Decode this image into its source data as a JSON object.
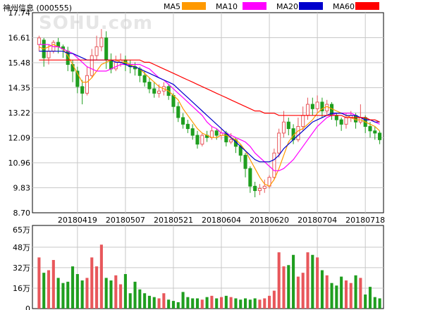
{
  "header": {
    "stock_title": "神州信息 (000555)"
  },
  "watermark": "SOHU.com",
  "legend": [
    {
      "label": "MA5",
      "color": "#FF9900"
    },
    {
      "label": "MA10",
      "color": "#FF00FF"
    },
    {
      "label": "MA20",
      "color": "#0000CC"
    },
    {
      "label": "MA60",
      "color": "#FF0000"
    }
  ],
  "colors": {
    "up": "#E8575B",
    "down": "#1F9E1F",
    "frame": "#000000",
    "grid": "#C8C8C8"
  },
  "chart_data": [
    {
      "type": "candlestick",
      "name": "price",
      "ylim": [
        8.7,
        17.74
      ],
      "y_ticks": [
        "17.74",
        "16.61",
        "15.48",
        "14.35",
        "13.22",
        "12.09",
        "10.96",
        "9.83",
        "8.70"
      ],
      "x_ticks": [
        {
          "index": 8,
          "label": "20180419"
        },
        {
          "index": 18,
          "label": "20180507"
        },
        {
          "index": 28,
          "label": "20180521"
        },
        {
          "index": 38,
          "label": "20180604"
        },
        {
          "index": 48,
          "label": "20180620"
        },
        {
          "index": 58,
          "label": "20180704"
        },
        {
          "index": 68,
          "label": "20180718"
        }
      ],
      "candles": [
        [
          16.3,
          16.6,
          16.7,
          16.0
        ],
        [
          16.5,
          15.7,
          16.6,
          15.3
        ],
        [
          15.7,
          16.0,
          16.3,
          15.4
        ],
        [
          16.0,
          16.4,
          16.5,
          15.9
        ],
        [
          16.4,
          16.2,
          16.6,
          15.9
        ],
        [
          16.2,
          16.1,
          16.3,
          15.7
        ],
        [
          16.0,
          15.4,
          16.2,
          15.1
        ],
        [
          15.4,
          15.1,
          15.6,
          14.6
        ],
        [
          15.1,
          14.4,
          15.3,
          14.1
        ],
        [
          14.4,
          14.1,
          14.7,
          13.6
        ],
        [
          14.1,
          14.9,
          15.3,
          14.0
        ],
        [
          14.9,
          15.8,
          16.1,
          14.8
        ],
        [
          15.8,
          16.2,
          16.7,
          15.6
        ],
        [
          16.2,
          16.6,
          17.0,
          16.0
        ],
        [
          16.6,
          15.6,
          16.9,
          15.2
        ],
        [
          15.6,
          15.2,
          15.9,
          15.0
        ],
        [
          15.2,
          15.5,
          15.8,
          15.1
        ],
        [
          15.5,
          15.6,
          15.9,
          15.3
        ],
        [
          15.6,
          15.4,
          15.8,
          15.1
        ],
        [
          15.4,
          15.3,
          15.6,
          15.0
        ],
        [
          15.3,
          15.2,
          15.5,
          14.9
        ],
        [
          15.2,
          14.9,
          15.3,
          14.6
        ],
        [
          14.9,
          14.6,
          15.1,
          14.4
        ],
        [
          14.6,
          14.3,
          14.8,
          14.1
        ],
        [
          14.3,
          14.1,
          14.6,
          13.9
        ],
        [
          14.1,
          14.2,
          14.5,
          13.9
        ],
        [
          14.2,
          14.4,
          14.6,
          14.0
        ],
        [
          14.4,
          14.0,
          14.5,
          13.8
        ],
        [
          14.0,
          13.5,
          14.1,
          13.2
        ],
        [
          13.5,
          13.0,
          13.7,
          12.8
        ],
        [
          13.0,
          12.7,
          13.2,
          12.5
        ],
        [
          12.7,
          12.5,
          12.9,
          12.3
        ],
        [
          12.5,
          12.2,
          12.7,
          12.0
        ],
        [
          12.2,
          11.8,
          12.4,
          11.6
        ],
        [
          11.8,
          12.2,
          12.3,
          11.7
        ],
        [
          12.2,
          12.1,
          12.4,
          11.9
        ],
        [
          12.1,
          12.4,
          12.6,
          12.0
        ],
        [
          12.4,
          12.2,
          12.5,
          12.0
        ],
        [
          12.2,
          12.3,
          12.5,
          12.0
        ],
        [
          12.3,
          11.9,
          12.4,
          11.7
        ],
        [
          11.9,
          12.0,
          12.3,
          11.8
        ],
        [
          12.0,
          11.7,
          12.1,
          11.4
        ],
        [
          11.7,
          11.3,
          11.8,
          11.0
        ],
        [
          11.3,
          10.7,
          11.4,
          10.3
        ],
        [
          10.7,
          9.9,
          10.8,
          9.6
        ],
        [
          9.9,
          9.7,
          10.1,
          9.4
        ],
        [
          9.7,
          9.8,
          10.0,
          9.5
        ],
        [
          9.8,
          9.9,
          10.2,
          9.6
        ],
        [
          9.9,
          10.3,
          10.4,
          9.8
        ],
        [
          10.3,
          11.4,
          11.6,
          10.2
        ],
        [
          11.4,
          12.3,
          12.5,
          11.2
        ],
        [
          12.3,
          12.8,
          13.3,
          12.1
        ],
        [
          12.8,
          12.5,
          13.0,
          12.2
        ],
        [
          12.5,
          12.0,
          12.7,
          11.8
        ],
        [
          12.0,
          12.6,
          13.0,
          11.9
        ],
        [
          12.6,
          13.1,
          13.5,
          12.4
        ],
        [
          13.1,
          13.6,
          13.9,
          12.9
        ],
        [
          13.6,
          13.4,
          13.9,
          13.1
        ],
        [
          13.4,
          13.7,
          14.0,
          13.2
        ],
        [
          13.7,
          13.3,
          13.9,
          13.0
        ],
        [
          13.3,
          13.6,
          13.8,
          13.1
        ],
        [
          13.6,
          13.1,
          13.7,
          12.9
        ],
        [
          13.1,
          12.9,
          13.2,
          12.6
        ],
        [
          12.9,
          12.7,
          13.0,
          12.4
        ],
        [
          12.7,
          13.0,
          13.2,
          12.5
        ],
        [
          13.0,
          13.1,
          13.3,
          12.8
        ],
        [
          13.1,
          12.8,
          13.2,
          12.5
        ],
        [
          12.8,
          13.0,
          13.6,
          12.7
        ],
        [
          13.0,
          12.6,
          13.1,
          12.3
        ],
        [
          12.6,
          12.4,
          12.8,
          12.1
        ],
        [
          12.4,
          12.3,
          12.6,
          12.0
        ],
        [
          12.3,
          12.0,
          12.4,
          11.8
        ]
      ],
      "ma": {
        "MA5": [
          16.2,
          16.1,
          16.2,
          16.3,
          16.2,
          16.1,
          15.8,
          15.4,
          15.0,
          14.6,
          14.6,
          14.8,
          15.1,
          15.4,
          15.5,
          15.6,
          15.6,
          15.5,
          15.5,
          15.4,
          15.3,
          15.2,
          15.0,
          14.8,
          14.6,
          14.4,
          14.3,
          14.2,
          14.0,
          13.8,
          13.4,
          13.1,
          12.8,
          12.5,
          12.3,
          12.2,
          12.1,
          12.1,
          12.2,
          12.2,
          12.1,
          12.0,
          11.8,
          11.5,
          11.1,
          10.7,
          10.3,
          10.0,
          9.9,
          10.2,
          10.7,
          11.3,
          11.9,
          12.2,
          12.4,
          12.5,
          12.7,
          12.9,
          13.2,
          13.4,
          13.5,
          13.4,
          13.3,
          13.2,
          13.1,
          13.0,
          12.9,
          12.9,
          12.8,
          12.7,
          12.6,
          12.4
        ],
        "MA10": [
          16.3,
          16.3,
          16.3,
          16.2,
          16.2,
          16.1,
          16.0,
          15.9,
          15.7,
          15.5,
          15.3,
          15.2,
          15.1,
          15.1,
          15.1,
          15.2,
          15.3,
          15.4,
          15.4,
          15.4,
          15.4,
          15.4,
          15.3,
          15.2,
          15.0,
          14.8,
          14.7,
          14.5,
          14.3,
          14.1,
          13.9,
          13.7,
          13.5,
          13.3,
          13.1,
          12.8,
          12.6,
          12.5,
          12.3,
          12.3,
          12.2,
          12.1,
          12.0,
          11.9,
          11.7,
          11.4,
          11.2,
          11.0,
          10.8,
          10.6,
          10.6,
          10.7,
          10.9,
          11.1,
          11.4,
          11.7,
          12.0,
          12.3,
          12.6,
          12.8,
          13.0,
          13.1,
          13.2,
          13.2,
          13.2,
          13.2,
          13.1,
          13.0,
          12.9,
          12.9,
          12.8,
          12.7
        ],
        "MA20": [
          16.0,
          16.0,
          16.0,
          16.0,
          16.0,
          16.0,
          15.9,
          15.9,
          15.8,
          15.7,
          15.6,
          15.6,
          15.6,
          15.6,
          15.6,
          15.6,
          15.5,
          15.5,
          15.4,
          15.3,
          15.3,
          15.2,
          15.1,
          15.0,
          14.9,
          14.8,
          14.7,
          14.6,
          14.5,
          14.3,
          14.1,
          13.9,
          13.7,
          13.5,
          13.3,
          13.1,
          12.9,
          12.7,
          12.5,
          12.3,
          12.1,
          11.9,
          11.7,
          11.5,
          11.3,
          11.1,
          11.0,
          11.0,
          11.0,
          11.1,
          11.3,
          11.6,
          11.8,
          12.0,
          12.2,
          12.4,
          12.6,
          12.8,
          12.9,
          13.0,
          13.1,
          13.2,
          13.2,
          13.2,
          13.1,
          13.1,
          13.1,
          13.0,
          12.9,
          12.9,
          12.8,
          12.8
        ],
        "MA60": [
          15.6,
          15.6,
          15.6,
          15.6,
          15.6,
          15.6,
          15.6,
          15.6,
          15.6,
          15.6,
          15.6,
          15.6,
          15.6,
          15.6,
          15.6,
          15.6,
          15.6,
          15.6,
          15.6,
          15.6,
          15.6,
          15.6,
          15.5,
          15.5,
          15.4,
          15.3,
          15.2,
          15.1,
          15.0,
          14.9,
          14.8,
          14.7,
          14.6,
          14.5,
          14.4,
          14.3,
          14.2,
          14.1,
          14.0,
          13.9,
          13.8,
          13.7,
          13.6,
          13.5,
          13.4,
          13.3,
          13.3,
          13.2,
          13.2,
          13.2,
          13.1,
          13.1,
          13.1,
          13.1,
          13.1,
          13.1,
          13.1,
          13.1,
          13.1,
          13.1,
          13.1,
          13.1,
          13.1,
          13.1,
          13.0,
          13.0,
          13.0,
          13.0,
          13.0,
          12.9,
          12.9,
          12.8
        ]
      }
    },
    {
      "type": "bar",
      "name": "volume",
      "unit": "万",
      "ylim": [
        0,
        65
      ],
      "y_ticks": [
        {
          "value": 65,
          "label": "65万"
        },
        {
          "value": 48,
          "label": "48万"
        },
        {
          "value": 32,
          "label": "32万"
        },
        {
          "value": 16,
          "label": "16万"
        },
        {
          "value": 0,
          "label": "0"
        }
      ],
      "values": [
        40,
        28,
        30,
        38,
        24,
        20,
        21,
        33,
        27,
        22,
        24,
        40,
        33,
        50,
        24,
        22,
        26,
        19,
        27,
        12,
        21,
        15,
        12,
        10,
        9,
        8,
        12,
        7,
        6,
        5,
        13,
        9,
        8,
        8,
        7,
        9,
        10,
        8,
        9,
        10,
        9,
        8,
        7,
        8,
        7,
        8,
        7,
        8,
        10,
        14,
        44,
        33,
        34,
        42,
        25,
        28,
        44,
        42,
        40,
        30,
        26,
        20,
        18,
        25,
        22,
        20,
        26,
        24,
        11,
        17,
        9,
        8
      ]
    }
  ]
}
